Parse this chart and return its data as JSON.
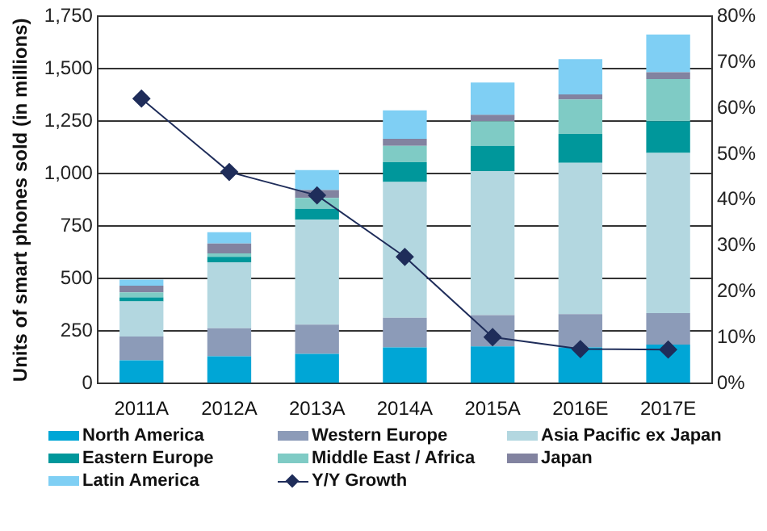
{
  "chart_data": {
    "type": "bar",
    "stacked": true,
    "categories": [
      "2011A",
      "2012A",
      "2013A",
      "2014A",
      "2015A",
      "2016E",
      "2017E"
    ],
    "ylabel": "Units of smart phones sold (in millions)",
    "ylim": [
      0,
      1750
    ],
    "yticks": [
      0,
      {
        "value": 250,
        "label": "250"
      },
      {
        "value": 500,
        "label": "500"
      },
      {
        "value": 750,
        "label": "750"
      },
      {
        "value": 1000,
        "label": "1,000"
      },
      {
        "value": 1250,
        "label": "1,250"
      },
      {
        "value": 1500,
        "label": "1,500"
      },
      {
        "value": 1750,
        "label": "1,750"
      }
    ],
    "y2lim": [
      0,
      80
    ],
    "y2ticks": [
      {
        "value": 0,
        "label": "0%"
      },
      {
        "value": 10,
        "label": "10%"
      },
      {
        "value": 20,
        "label": "20%"
      },
      {
        "value": 30,
        "label": "30%"
      },
      {
        "value": 40,
        "label": "40%"
      },
      {
        "value": 50,
        "label": "50%"
      },
      {
        "value": 60,
        "label": "60%"
      },
      {
        "value": 70,
        "label": "70%"
      },
      {
        "value": 80,
        "label": "80%"
      }
    ],
    "grid": "y",
    "legend": "bottom",
    "series": [
      {
        "name": "North America",
        "color": "#00a6d6",
        "values": [
          110,
          130,
          141,
          172,
          177,
          172,
          185
        ]
      },
      {
        "name": "Western Europe",
        "color": "#8c9bb8",
        "values": [
          114,
          133,
          140,
          141,
          149,
          159,
          151
        ]
      },
      {
        "name": "Asia Pacific ex Japan",
        "color": "#b3d7e0",
        "values": [
          167,
          315,
          500,
          648,
          687,
          721,
          763
        ]
      },
      {
        "name": "Eastern Europe",
        "color": "#00979b",
        "values": [
          20,
          26,
          52,
          94,
          120,
          138,
          151
        ]
      },
      {
        "name": "Middle East / Africa",
        "color": "#7fcbc5",
        "values": [
          24,
          16,
          52,
          78,
          117,
          164,
          201
        ]
      },
      {
        "name": "Japan",
        "color": "#8283a0",
        "values": [
          31,
          47,
          37,
          34,
          31,
          24,
          33
        ]
      },
      {
        "name": "Latin America",
        "color": "#7fcff4",
        "values": [
          29,
          54,
          96,
          135,
          154,
          169,
          180
        ]
      },
      {
        "name": "Y/Y Growth",
        "type": "line",
        "axis": "y2",
        "marker": "diamond",
        "color": "#1f2d5a",
        "values": [
          62.1,
          46.1,
          41.0,
          27.6,
          10.1,
          7.5,
          7.4
        ]
      }
    ]
  }
}
